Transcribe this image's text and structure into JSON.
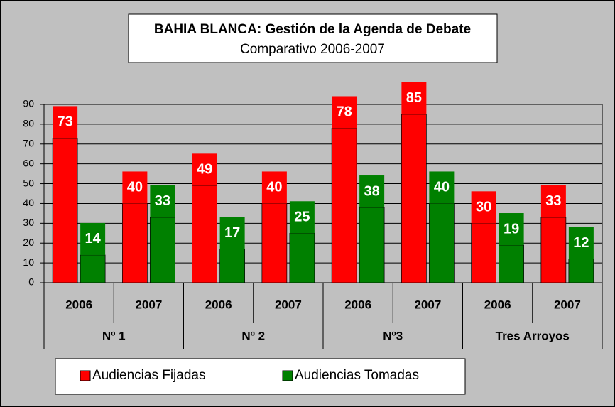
{
  "chart_data": {
    "type": "bar",
    "title": "BAHIA BLANCA: Gestión de la Agenda de Debate",
    "subtitle": "Comparativo 2006-2007",
    "categories": [
      "2006",
      "2007",
      "2006",
      "2007",
      "2006",
      "2007",
      "2006",
      "2007"
    ],
    "groups": [
      "Nº 1",
      "Nº 2",
      "Nº3",
      "Tres Arroyos"
    ],
    "series": [
      {
        "name": "Audiencias Fijadas",
        "color": "#ff0000",
        "values": [
          73,
          40,
          49,
          40,
          78,
          85,
          30,
          33
        ]
      },
      {
        "name": "Audiencias Tomadas",
        "color": "#008000",
        "values": [
          14,
          33,
          17,
          25,
          38,
          40,
          19,
          12
        ]
      }
    ],
    "ylim": [
      0,
      90
    ],
    "yticks": [
      0,
      10,
      20,
      30,
      40,
      50,
      60,
      70,
      80,
      90
    ],
    "grid": true
  }
}
